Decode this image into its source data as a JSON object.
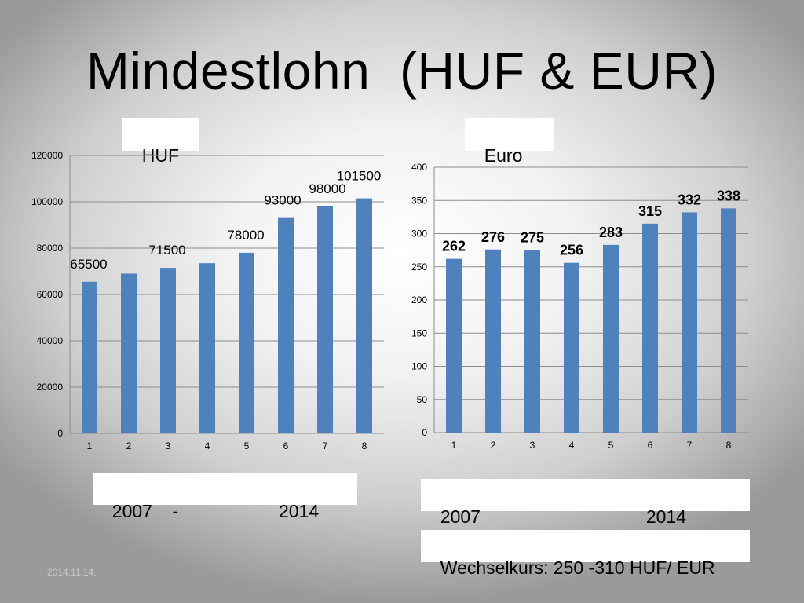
{
  "slide": {
    "title": "Mindestlohn  (HUF & EUR)",
    "date": "2014.11.14.",
    "huf_label": "HUF",
    "euro_label": "Euro",
    "huf_years": "2007    -                    2014",
    "euro_years": "2007                                 2014",
    "exchange_rate": "Wechselkurs: 250 -310 HUF/ EUR"
  },
  "colors": {
    "bar": "#4f81bd",
    "grid": "#8c8c8c"
  },
  "chart_data": [
    {
      "type": "bar",
      "categories": [
        "1",
        "2",
        "3",
        "4",
        "5",
        "6",
        "7",
        "8"
      ],
      "values": [
        65500,
        69000,
        71500,
        73500,
        78000,
        93000,
        98000,
        101500
      ],
      "data_labels": [
        "65500",
        "",
        "71500",
        "",
        "78000",
        "93000",
        "98000",
        "101500"
      ],
      "yticks": [
        "0",
        "20000",
        "40000",
        "60000",
        "80000",
        "100000",
        "120000"
      ],
      "ylim": [
        0,
        120000
      ],
      "grid": true,
      "bold_labels": false
    },
    {
      "type": "bar",
      "categories": [
        "1",
        "2",
        "3",
        "4",
        "5",
        "6",
        "7",
        "8"
      ],
      "values": [
        262,
        276,
        275,
        256,
        283,
        315,
        332,
        338
      ],
      "data_labels": [
        "262",
        "276",
        "275",
        "256",
        "283",
        "315",
        "332",
        "338"
      ],
      "yticks": [
        "0",
        "50",
        "100",
        "150",
        "200",
        "250",
        "300",
        "350",
        "400"
      ],
      "ylim": [
        0,
        400
      ],
      "grid": true,
      "bold_labels": true
    }
  ]
}
